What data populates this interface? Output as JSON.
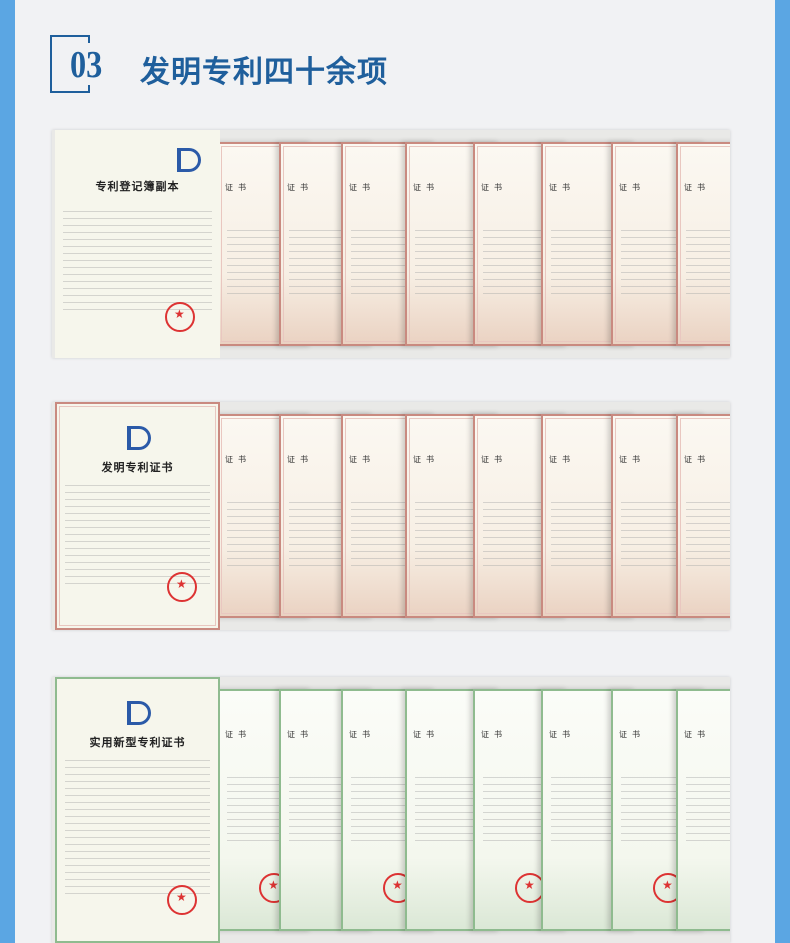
{
  "header": {
    "number": "03",
    "title": "发明专利四十余项"
  },
  "rows": [
    {
      "type": "red",
      "first_title": "专利登记簿副本",
      "card_title": "证书",
      "count": 8
    },
    {
      "type": "red",
      "first_title": "发明专利证书",
      "card_title": "证书",
      "count": 8
    },
    {
      "type": "green",
      "first_title": "实用新型专利证书",
      "card_title": "证书",
      "count": 8
    }
  ],
  "colors": {
    "accent": "#1f5f9c",
    "side_border": "#5ba6e3",
    "seal": "#dd3333"
  }
}
